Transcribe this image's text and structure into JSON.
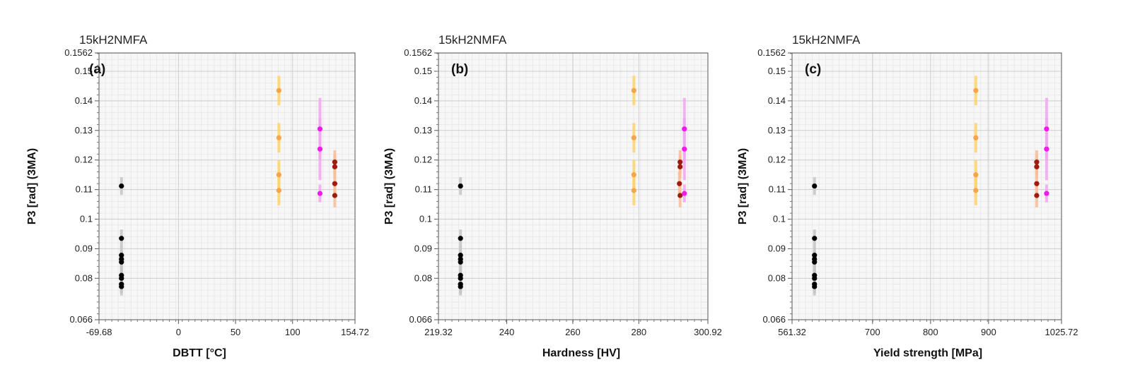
{
  "colors": {
    "black": "#000000",
    "orange": "#f5a54a",
    "magenta": "#f01aea",
    "darkred": "#a01a10",
    "err_black": "#c4c4c4",
    "err_orange": "#ffd36a",
    "err_magenta": "#f1a6f0",
    "err_darkred": "#f7bd9a"
  },
  "chart_data": [
    {
      "type": "scatter",
      "panel_label": "(a)",
      "title": "15kH2NMFA",
      "xlabel": "DBTT [°C]",
      "ylabel": "P3 [rad] (3MA)",
      "xlim": [
        -69.68,
        154.72
      ],
      "ylim": [
        0.066,
        0.1562
      ],
      "xticks": [
        -69.68,
        0,
        50,
        100,
        154.72
      ],
      "xtick_labels": [
        "-69.68",
        "0",
        "50",
        "100",
        "154.72"
      ],
      "yticks": [
        0.066,
        0.08,
        0.09,
        0.1,
        0.11,
        0.12,
        0.13,
        0.14,
        0.15,
        0.1562
      ],
      "ytick_labels": [
        "0.066",
        "0.08",
        "0.09",
        "0.1",
        "0.11",
        "0.12",
        "0.13",
        "0.14",
        "0.15",
        "0.1562"
      ],
      "series": [
        {
          "name": "black",
          "color": "black",
          "err": "err_black",
          "points": [
            [
              -50,
              0.1112,
              0.003
            ],
            [
              -50,
              0.0935,
              0.003
            ],
            [
              -50,
              0.0878,
              0.003
            ],
            [
              -50,
              0.0865,
              0.003
            ],
            [
              -50,
              0.0855,
              0.003
            ],
            [
              -50,
              0.081,
              0.003
            ],
            [
              -50,
              0.08,
              0.003
            ],
            [
              -50,
              0.078,
              0.003
            ],
            [
              -50,
              0.0772,
              0.003
            ]
          ]
        },
        {
          "name": "orange",
          "color": "orange",
          "err": "err_orange",
          "points": [
            [
              88,
              0.1435,
              0.005
            ],
            [
              88,
              0.1275,
              0.005
            ],
            [
              88,
              0.115,
              0.005
            ],
            [
              88,
              0.1097,
              0.005
            ]
          ]
        },
        {
          "name": "magenta",
          "color": "magenta",
          "err": "err_magenta",
          "points": [
            [
              124,
              0.1305,
              0.0105
            ],
            [
              124,
              0.1237,
              0.0105
            ],
            [
              124,
              0.1087,
              0.003
            ]
          ]
        },
        {
          "name": "darkred",
          "color": "darkred",
          "err": "err_darkred",
          "points": [
            [
              137,
              0.1193,
              0.004
            ],
            [
              137,
              0.1177,
              0.004
            ],
            [
              137,
              0.112,
              0.004
            ],
            [
              137,
              0.108,
              0.004
            ]
          ]
        }
      ]
    },
    {
      "type": "scatter",
      "panel_label": "(b)",
      "title": "15kH2NMFA",
      "xlabel": "Hardness [HV]",
      "ylabel": "P3 [rad] (3MA)",
      "xlim": [
        219.32,
        300.92
      ],
      "ylim": [
        0.066,
        0.1562
      ],
      "xticks": [
        219.32,
        240,
        260,
        280,
        300.92
      ],
      "xtick_labels": [
        "219.32",
        "240",
        "260",
        "280",
        "300.92"
      ],
      "yticks": [
        0.066,
        0.08,
        0.09,
        0.1,
        0.11,
        0.12,
        0.13,
        0.14,
        0.15,
        0.1562
      ],
      "ytick_labels": [
        "0.066",
        "0.08",
        "0.09",
        "0.1",
        "0.11",
        "0.12",
        "0.13",
        "0.14",
        "0.15",
        "0.1562"
      ],
      "series": [
        {
          "name": "black",
          "color": "black",
          "err": "err_black",
          "points": [
            [
              226,
              0.1112,
              0.003
            ],
            [
              226,
              0.0935,
              0.003
            ],
            [
              226,
              0.0878,
              0.003
            ],
            [
              226,
              0.0865,
              0.003
            ],
            [
              226,
              0.0855,
              0.003
            ],
            [
              226,
              0.081,
              0.003
            ],
            [
              226,
              0.08,
              0.003
            ],
            [
              226,
              0.078,
              0.003
            ],
            [
              226,
              0.0772,
              0.003
            ]
          ]
        },
        {
          "name": "orange",
          "color": "orange",
          "err": "err_orange",
          "points": [
            [
              278.5,
              0.1435,
              0.005
            ],
            [
              278.5,
              0.1275,
              0.005
            ],
            [
              278.5,
              0.115,
              0.005
            ],
            [
              278.5,
              0.1097,
              0.005
            ]
          ]
        },
        {
          "name": "darkred",
          "color": "darkred",
          "err": "err_darkred",
          "points": [
            [
              292.5,
              0.1193,
              0.004
            ],
            [
              292.5,
              0.1177,
              0.004
            ],
            [
              292.3,
              0.112,
              0.004
            ],
            [
              292.5,
              0.108,
              0.004
            ]
          ]
        },
        {
          "name": "magenta",
          "color": "magenta",
          "err": "err_magenta",
          "points": [
            [
              293.8,
              0.1305,
              0.0105
            ],
            [
              293.8,
              0.1237,
              0.0105
            ],
            [
              293.8,
              0.1087,
              0.003
            ]
          ]
        }
      ]
    },
    {
      "type": "scatter",
      "panel_label": "(c)",
      "title": "15kH2NMFA",
      "xlabel": "Yield strength [MPa]",
      "ylabel": "P3 [rad] (3MA)",
      "xlim": [
        561.32,
        1025.72
      ],
      "ylim": [
        0.066,
        0.1562
      ],
      "xticks": [
        561.32,
        700,
        800,
        900,
        1025.72
      ],
      "xtick_labels": [
        "561.32",
        "700",
        "800",
        "900",
        "1025.72"
      ],
      "yticks": [
        0.066,
        0.08,
        0.09,
        0.1,
        0.11,
        0.12,
        0.13,
        0.14,
        0.15,
        0.1562
      ],
      "ytick_labels": [
        "0.066",
        "0.08",
        "0.09",
        "0.1",
        "0.11",
        "0.12",
        "0.13",
        "0.14",
        "0.15",
        "0.1562"
      ],
      "series": [
        {
          "name": "black",
          "color": "black",
          "err": "err_black",
          "points": [
            [
              600,
              0.1112,
              0.003
            ],
            [
              600,
              0.0935,
              0.003
            ],
            [
              600,
              0.0878,
              0.003
            ],
            [
              600,
              0.0865,
              0.003
            ],
            [
              600,
              0.0855,
              0.003
            ],
            [
              600,
              0.081,
              0.003
            ],
            [
              600,
              0.08,
              0.003
            ],
            [
              600,
              0.078,
              0.003
            ],
            [
              600,
              0.0772,
              0.003
            ]
          ]
        },
        {
          "name": "orange",
          "color": "orange",
          "err": "err_orange",
          "points": [
            [
              878,
              0.1435,
              0.005
            ],
            [
              878,
              0.1275,
              0.005
            ],
            [
              878,
              0.115,
              0.005
            ],
            [
              878,
              0.1097,
              0.005
            ]
          ]
        },
        {
          "name": "darkred",
          "color": "darkred",
          "err": "err_darkred",
          "points": [
            [
              983,
              0.1193,
              0.004
            ],
            [
              983,
              0.1177,
              0.004
            ],
            [
              983,
              0.112,
              0.004
            ],
            [
              983,
              0.108,
              0.004
            ]
          ]
        },
        {
          "name": "magenta",
          "color": "magenta",
          "err": "err_magenta",
          "points": [
            [
              1000,
              0.1305,
              0.0105
            ],
            [
              1000,
              0.1237,
              0.0105
            ],
            [
              1000,
              0.1087,
              0.003
            ]
          ]
        }
      ]
    }
  ]
}
